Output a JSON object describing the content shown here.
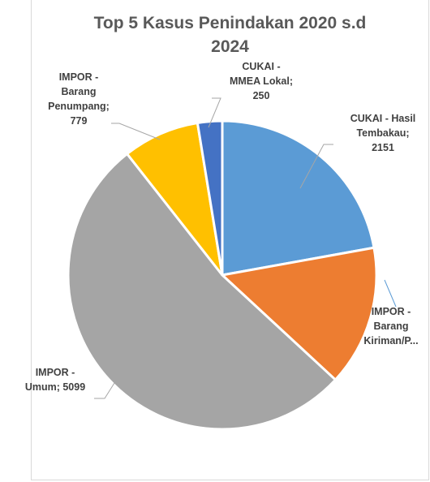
{
  "chart_data": {
    "type": "pie",
    "title_lines": [
      "Top 5 Kasus Penindakan 2020 s.d",
      "2024"
    ],
    "slices": [
      {
        "label_lines": [
          "CUKAI - Hasil",
          "Tembakau;",
          "2151"
        ],
        "category": "CUKAI - Hasil Tembakau",
        "value": 2151,
        "color": "#5b9bd5"
      },
      {
        "label_lines": [
          "IMPOR -",
          "Barang",
          "Kiriman/P..."
        ],
        "category": "IMPOR - Barang Kiriman/P...",
        "value": 1430,
        "color": "#ed7d31"
      },
      {
        "label_lines": [
          "IMPOR -",
          "Umum; 5099"
        ],
        "category": "IMPOR - Umum",
        "value": 5099,
        "color": "#a5a5a5"
      },
      {
        "label_lines": [
          "IMPOR -",
          "Barang",
          "Penumpang;",
          "779"
        ],
        "category": "IMPOR - Barang Penumpang",
        "value": 779,
        "color": "#ffc000"
      },
      {
        "label_lines": [
          "CUKAI -",
          "MMEA Lokal;",
          "250"
        ],
        "category": "CUKAI - MMEA Lokal",
        "value": 250,
        "color": "#4472c4"
      }
    ]
  }
}
